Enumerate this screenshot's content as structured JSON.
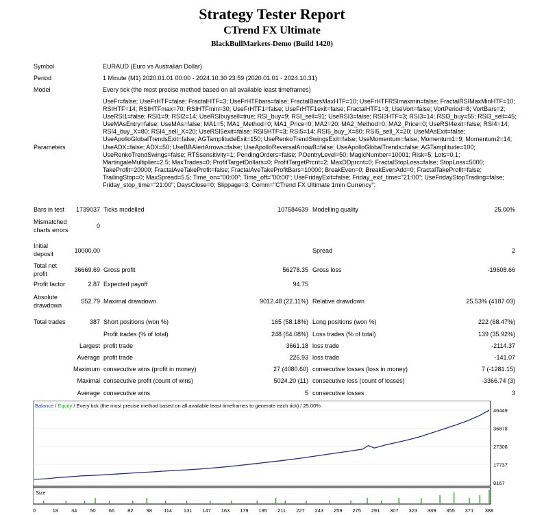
{
  "header": {
    "title": "Strategy Tester Report",
    "subtitle": "CTrend FX Ultimate",
    "server": "BlackBullMarkets-Demo (Build 1420)"
  },
  "info": {
    "symbol_label": "Symbol",
    "symbol": "EURAUD (Euro vs Australian Dollar)",
    "period_label": "Period",
    "period": "1 Minute (M1) 2020.01.01 00:00 - 2024.10.30 23:59 (2020.01.01 - 2024.10.31)",
    "model_label": "Model",
    "model": "Every tick (the most precise method based on all available least timeframes)",
    "parameters_label": "Parameters",
    "parameters": "UseFr=false; UseFrHTF=false; FractalHTF=3; UseFrHTFbars=false; FractalBarsMaxHTF=10; UseFrHTFRSImaxmin=false; FractalRSIMaxMinHTF=10; RSIHTF=14; RSIHTFmax=70; RSIHTFmin=30; UseFrHTF1=false; UseFrHTF1exit=false; FractalHTF1=3; UseVort=false; VortPeriod=8; VortBars=2; UseRSI1=false; RSI1=9; RSI2=14; UseRSIbuysell=true; RSI_buy=9; RSI_sell=91; UseRSI3=false; RSI3HTF=3; RSI3=14; RSI3_buy=55; RSI3_sell=45; UseMAsEntry=false; UseMAs=false; MA1=5; MA1_Method=0; MA1_Price=0; MA2=20; MA2_Method=0; MA2_Price=0; UseRSI4exit=false; RSI4=14; RSI4_buy_X=80; RSI4_sell_X=20; UseRSI5exit=false; RSI5HTF=3; RSI5=14; RSI5_buy_X=80; RSI5_sell_X=20; UseMAsExit=false; UseApolloGlobalTrendsExit=false; AGTamplitudeExit=150; UseRenkoTrendSwingsExit=false; UseMomentum=false; Momentum1=9; Momentum2=14; UseADX=false; ADX=50; UseBBAlertArrows=false; UseApolloReversalArrowB=false; UseApolloGlobalTrends=false; AGTamplitude=100; UseRenkoTrendSwings=false; RTSsensitivity=1; PendingOrders=false; POentryLevel=50; MagicNumber=10001; Risk=5; Lots=0.1; MartingaleMultiplier=2.5; MaxTrades=0; ProfitTargetDollars=0; ProfitTargetPrcnt=2; MaxDDprcnt=0; FractalStopLoss=false; StopLoss=5000; TakeProfit=20000; FractalAveTakeProfit=false; FractalAveTakeProfitBars=10000; BreakEven=0; BreakEvenAdd=0; FractalTakeProfit=false; TrailingStop=0; MaxSpread=5.5; Time_on=\"00:00\"; Time_off=\"00:00\"; UseFridayExit=false; Friday_exit_time=\"21:00\"; UseFridayStopTrading=false; Friday_stop_time=\"21:00\"; DaysClose=0; Slippage=3; Comm=\"CTrend FX Ultimate 1min Currency\";"
  },
  "stats": {
    "bars_label": "Bars in test",
    "bars": "1739037",
    "ticks_label": "Ticks modelled",
    "ticks": "107584639",
    "quality_label": "Modelling quality",
    "quality": "25.00%",
    "mismatch_label_1": "Mismatched",
    "mismatch_label_2": "charts errors",
    "mismatch": "0",
    "deposit_label_1": "Initial",
    "deposit_label_2": "deposit",
    "deposit": "10000.00",
    "spread_label": "Spread",
    "spread": "2",
    "net_label_1": "Total net",
    "net_label_2": "profit",
    "net": "36669.69",
    "gross_profit_label": "Gross profit",
    "gross_profit": "56278.35",
    "gross_loss_label": "Gross loss",
    "gross_loss": "-19608.66",
    "pf_label": "Profit factor",
    "pf": "2.87",
    "payoff_label": "Expected payoff",
    "payoff": "94.75",
    "abs_dd_label_1": "Absolute",
    "abs_dd_label_2": "drawdown",
    "abs_dd": "552.79",
    "max_dd_label": "Maximal drawdown",
    "max_dd": "9012.48 (22.11%)",
    "rel_dd_label": "Relative drawdown",
    "rel_dd": "25.53% (4187.03)",
    "total_trades_label": "Total trades",
    "total_trades": "387",
    "short_label": "Short positions (won %)",
    "short": "165 (58.18%)",
    "long_label": "Long positions (won %)",
    "long": "222 (68.47%)",
    "profit_trades_label": "Profit trades (% of total)",
    "profit_trades": "248 (64.08%)",
    "loss_trades_label": "Loss trades (% of total)",
    "loss_trades": "139 (35.92%)",
    "largest_label": "Largest",
    "largest_profit_label": "profit trade",
    "largest_profit": "3661.18",
    "largest_loss_label": "loss trade",
    "largest_loss": "-2114.37",
    "average_label": "Average",
    "average_profit_label": "profit trade",
    "average_profit": "226.93",
    "average_loss_label": "loss trade",
    "average_loss": "-141.07",
    "maximum_label": "Maximum",
    "max_cons_wins_label": "consecutive wins (profit in money)",
    "max_cons_wins": "27 (4080.60)",
    "max_cons_losses_label": "consecutive losses (loss in money)",
    "max_cons_losses": "7 (-1281.15)",
    "maximal_label": "Maximal",
    "maximal_cons_profit_label": "consecutive profit (count of wins)",
    "maximal_cons_profit": "5024.20 (11)",
    "maximal_cons_loss_label": "consecutive loss (count of losses)",
    "maximal_cons_loss": "-3366.74 (3)",
    "avg_cons_label": "Average",
    "avg_cons_wins_label": "consecutive wins",
    "avg_cons_wins": "5",
    "avg_cons_losses_label": "consecutive losses",
    "avg_cons_losses": "3"
  },
  "chart_data": {
    "type": "line",
    "legend": {
      "balance": "Balance",
      "sep": " / ",
      "equity": "Equity",
      "rest": " / Every tick (the most precise method based on all available least timeframes to generate each tick) / 25.00%"
    },
    "colors": {
      "balance": "#1f2a8c",
      "equity": "#2aa02a",
      "legend_balance": "#1a3aa0",
      "size_bar": "#3a9a3a"
    },
    "y_ticks": [
      46449,
      36878,
      27308,
      17737,
      8167
    ],
    "ylim": [
      8167,
      46449
    ],
    "xlim": [
      0,
      388
    ],
    "x_ticks": [
      0,
      18,
      34,
      50,
      66,
      82,
      98,
      114,
      131,
      147,
      163,
      179,
      195,
      211,
      227,
      243,
      259,
      275,
      291,
      307,
      323,
      339,
      355,
      371,
      388
    ],
    "size_label": "Size",
    "balance": {
      "x": [
        0,
        10,
        20,
        30,
        40,
        50,
        60,
        70,
        80,
        90,
        100,
        110,
        120,
        130,
        140,
        150,
        160,
        170,
        180,
        190,
        200,
        210,
        220,
        230,
        240,
        250,
        260,
        270,
        280,
        285,
        290,
        300,
        310,
        320,
        330,
        340,
        350,
        360,
        370,
        380,
        388
      ],
      "y": [
        10000,
        10300,
        10900,
        11300,
        11800,
        12100,
        12400,
        12800,
        13200,
        13600,
        13900,
        14300,
        14700,
        15000,
        15400,
        15900,
        16400,
        17000,
        17700,
        18400,
        19100,
        19800,
        20600,
        21400,
        22300,
        23200,
        24100,
        25000,
        25900,
        27800,
        26500,
        28200,
        29600,
        31000,
        32700,
        34700,
        36700,
        38800,
        41000,
        43700,
        46449
      ]
    },
    "size": {
      "x": [
        8,
        27,
        43,
        52,
        64,
        84,
        96,
        112,
        130,
        150,
        168,
        190,
        206,
        214,
        232,
        252,
        270,
        284,
        296,
        311,
        330,
        346,
        358,
        371,
        380,
        388
      ],
      "y": [
        1,
        1,
        1,
        2,
        1,
        1,
        2,
        1,
        1,
        1,
        1,
        1,
        2,
        1,
        1,
        1,
        1,
        2,
        1,
        2,
        2,
        3,
        4,
        2,
        3,
        5
      ]
    }
  }
}
